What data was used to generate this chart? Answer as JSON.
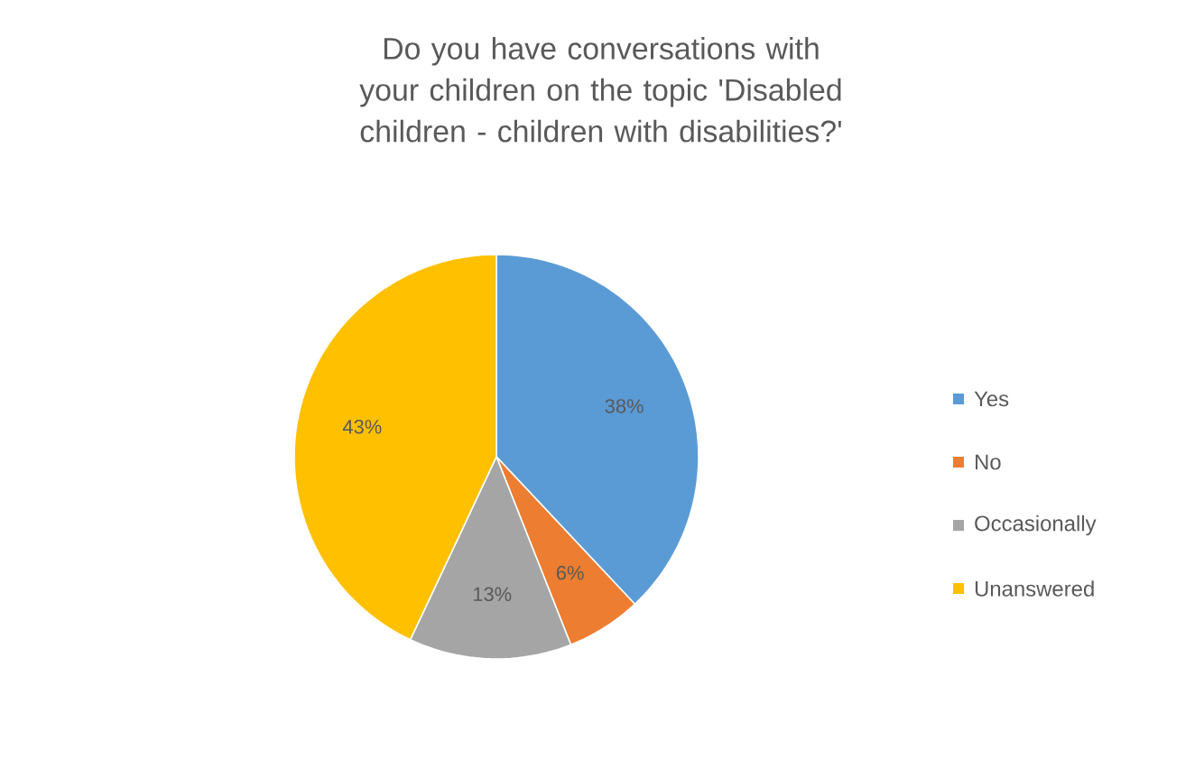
{
  "chart_data": {
    "type": "pie",
    "title": "Do you have conversations with your children on the topic 'Disabled children - children with disabilities?'",
    "categories": [
      "Yes",
      "No",
      "Occasionally",
      "Unanswered"
    ],
    "values": [
      38,
      6,
      13,
      43
    ],
    "value_labels": [
      "38%",
      "6%",
      "13%",
      "43%"
    ],
    "colors": [
      "#5b9bd5",
      "#ed7d31",
      "#a5a5a5",
      "#ffc000"
    ],
    "legend": "right"
  }
}
